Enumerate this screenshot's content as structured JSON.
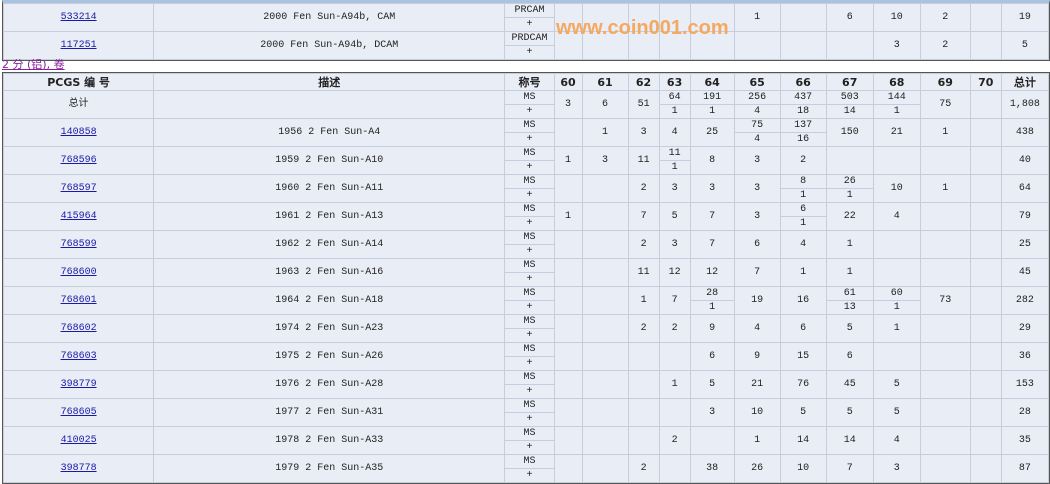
{
  "grades": [
    "60",
    "61",
    "62",
    "63",
    "64",
    "65",
    "66",
    "67",
    "68",
    "69",
    "70"
  ],
  "top_rows": [
    {
      "id": "533214",
      "desc": "2000 Fen Sun-A94b, CAM",
      "designation": "PRCAM",
      "plus": "+",
      "cells": [
        "",
        "",
        "",
        "",
        "",
        "1",
        "",
        "6",
        "10",
        "2",
        ""
      ],
      "total": "19"
    },
    {
      "id": "117251",
      "desc": "2000 Fen Sun-A94b, DCAM",
      "designation": "PRDCAM",
      "plus": "+",
      "cells": [
        "",
        "",
        "",
        "",
        "",
        "",
        "",
        "",
        "3",
        "2",
        ""
      ],
      "total": "5"
    }
  ],
  "section_label": "2 分 (铝), 卷",
  "header": {
    "pcgs": "PCGS 编 号",
    "desc": "描述",
    "designation": "称号",
    "total": "总计"
  },
  "total_row": {
    "label": "总计",
    "designation": "MS",
    "plus": "+",
    "cells": [
      "3",
      "6",
      "51",
      [
        "64",
        "1"
      ],
      [
        "191",
        "1"
      ],
      [
        "256",
        "4"
      ],
      [
        "437",
        "18"
      ],
      [
        "503",
        "14"
      ],
      [
        "144",
        "1"
      ],
      "75",
      ""
    ],
    "total": "1,808"
  },
  "rows": [
    {
      "id": "140858",
      "desc": "1956 2 Fen Sun-A4",
      "cells": [
        "",
        "1",
        "3",
        "4",
        "25",
        [
          "75",
          "4"
        ],
        [
          "137",
          "16"
        ],
        "150",
        "21",
        "1",
        ""
      ],
      "total": "438"
    },
    {
      "id": "768596",
      "desc": "1959 2 Fen Sun-A10",
      "cells": [
        "1",
        "3",
        "11",
        [
          "11",
          "1"
        ],
        "8",
        "3",
        "2",
        "",
        "",
        "",
        ""
      ],
      "total": "40"
    },
    {
      "id": "768597",
      "desc": "1960 2 Fen Sun-A11",
      "cells": [
        "",
        "",
        "2",
        "3",
        "3",
        "3",
        [
          "8",
          "1"
        ],
        [
          "26",
          "1"
        ],
        "10",
        "1",
        ""
      ],
      "total": "64"
    },
    {
      "id": "415964",
      "desc": "1961 2 Fen Sun-A13",
      "cells": [
        "1",
        "",
        "7",
        "5",
        "7",
        "3",
        [
          "6",
          "1"
        ],
        "22",
        "4",
        "",
        ""
      ],
      "total": "79"
    },
    {
      "id": "768599",
      "desc": "1962 2 Fen Sun-A14",
      "cells": [
        "",
        "",
        "2",
        "3",
        "7",
        "6",
        "4",
        "1",
        "",
        "",
        ""
      ],
      "total": "25"
    },
    {
      "id": "768600",
      "desc": "1963 2 Fen Sun-A16",
      "cells": [
        "",
        "",
        "11",
        "12",
        "12",
        "7",
        "1",
        "1",
        "",
        "",
        ""
      ],
      "total": "45"
    },
    {
      "id": "768601",
      "desc": "1964 2 Fen Sun-A18",
      "cells": [
        "",
        "",
        "1",
        "7",
        [
          "28",
          "1"
        ],
        "19",
        "16",
        [
          "61",
          "13"
        ],
        [
          "60",
          "1"
        ],
        "73",
        ""
      ],
      "total": "282"
    },
    {
      "id": "768602",
      "desc": "1974 2 Fen Sun-A23",
      "cells": [
        "",
        "",
        "2",
        "2",
        "9",
        "4",
        "6",
        "5",
        "1",
        "",
        ""
      ],
      "total": "29"
    },
    {
      "id": "768603",
      "desc": "1975 2 Fen Sun-A26",
      "cells": [
        "",
        "",
        "",
        "",
        "6",
        "9",
        "15",
        "6",
        "",
        "",
        ""
      ],
      "total": "36"
    },
    {
      "id": "398779",
      "desc": "1976 2 Fen Sun-A28",
      "cells": [
        "",
        "",
        "",
        "1",
        "5",
        "21",
        "76",
        "45",
        "5",
        "",
        ""
      ],
      "total": "153"
    },
    {
      "id": "768605",
      "desc": "1977 2 Fen Sun-A31",
      "cells": [
        "",
        "",
        "",
        "",
        "3",
        "10",
        "5",
        "5",
        "5",
        "",
        ""
      ],
      "total": "28"
    },
    {
      "id": "410025",
      "desc": "1978 2 Fen Sun-A33",
      "cells": [
        "",
        "",
        "",
        "2",
        "",
        "1",
        "14",
        "14",
        "4",
        "",
        ""
      ],
      "total": "35"
    },
    {
      "id": "398778",
      "desc": "1979 2 Fen Sun-A35",
      "cells": [
        "",
        "",
        "2",
        "",
        "38",
        "26",
        "10",
        "7",
        "3",
        "",
        ""
      ],
      "total": "87"
    }
  ],
  "row_designation": "MS",
  "row_plus": "+",
  "watermark": "www.coin001.com"
}
